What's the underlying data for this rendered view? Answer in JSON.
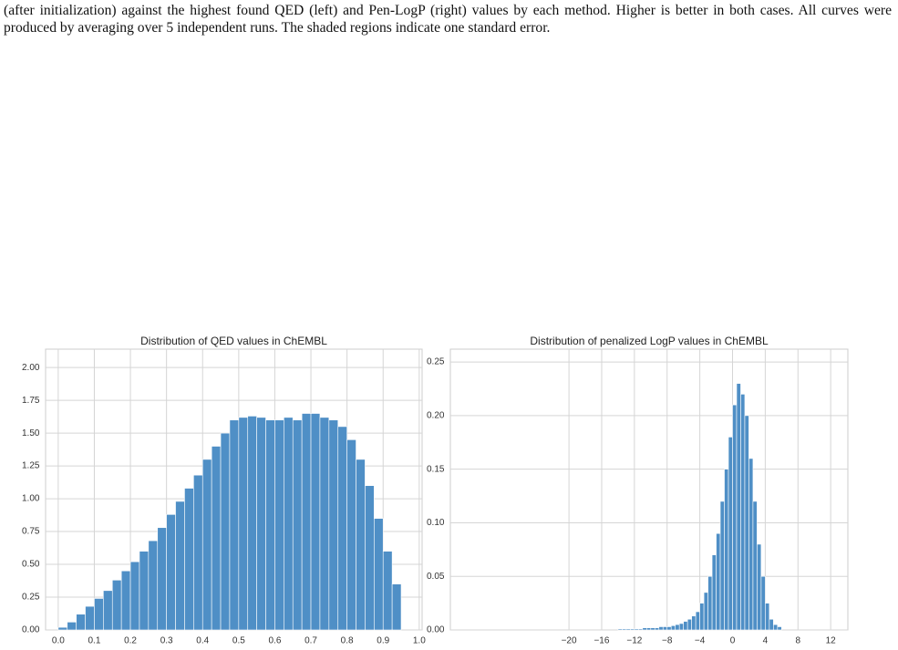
{
  "caption_text": "(after initialization) against the highest found QED (left) and Pen-LogP (right) values by each method. Higher is better in both cases. All curves were produced by averaging over 5 independent runs. The shaded regions indicate one standard error.",
  "chart_data": [
    {
      "type": "histogram",
      "title": "Distribution of QED values in ChEMBL",
      "color": "#4f8fc6",
      "grid": true,
      "bins": [
        0,
        0.025,
        0.05,
        0.075,
        0.1,
        0.125,
        0.15,
        0.175,
        0.2,
        0.225,
        0.25,
        0.275,
        0.3,
        0.325,
        0.35,
        0.375,
        0.4,
        0.425,
        0.45,
        0.475,
        0.5,
        0.525,
        0.55,
        0.575,
        0.6,
        0.625,
        0.65,
        0.675,
        0.7,
        0.725,
        0.75,
        0.775,
        0.8,
        0.825,
        0.85,
        0.875,
        0.9,
        0.925,
        0.95
      ],
      "values": [
        0.02,
        0.06,
        0.12,
        0.18,
        0.24,
        0.3,
        0.38,
        0.45,
        0.52,
        0.6,
        0.68,
        0.78,
        0.88,
        0.98,
        1.08,
        1.18,
        1.3,
        1.4,
        1.5,
        1.6,
        1.62,
        1.63,
        1.62,
        1.6,
        1.6,
        1.62,
        1.6,
        1.65,
        1.65,
        1.62,
        1.6,
        1.55,
        1.45,
        1.3,
        1.1,
        0.85,
        0.6,
        0.35
      ],
      "xlim": [
        -0.035,
        1.008
      ],
      "ylim": [
        0,
        2.14
      ],
      "xticks": [
        {
          "value": 0,
          "label": "0.0"
        },
        0.1,
        0.2,
        0.3,
        0.4,
        0.5,
        0.6,
        0.7,
        0.8,
        0.9,
        {
          "value": 1,
          "label": "1.0"
        }
      ],
      "yticks": [
        {
          "value": 0,
          "label": "0.00"
        },
        {
          "value": 0.25,
          "label": "0.25"
        },
        {
          "value": 0.5,
          "label": "0.50"
        },
        {
          "value": 0.75,
          "label": "0.75"
        },
        {
          "value": 1,
          "label": "1.00"
        },
        {
          "value": 1.25,
          "label": "1.25"
        },
        {
          "value": 1.5,
          "label": "1.50"
        },
        {
          "value": 1.75,
          "label": "1.75"
        },
        {
          "value": 2,
          "label": "2.00"
        }
      ]
    },
    {
      "type": "histogram",
      "title": "Distribution of penalized LogP values in ChEMBL",
      "color": "#4f8fc6",
      "grid": true,
      "bins": [
        -14,
        -13.5,
        -13,
        -12.5,
        -12,
        -11.5,
        -11,
        -10.5,
        -10,
        -9.5,
        -9,
        -8.5,
        -8,
        -7.5,
        -7,
        -6.5,
        -6,
        -5.5,
        -5,
        -4.5,
        -4,
        -3.5,
        -3,
        -2.5,
        -2,
        -1.5,
        -1,
        -0.5,
        0,
        0.5,
        1,
        1.5,
        2,
        2.5,
        3,
        3.5,
        4,
        4.5,
        5,
        5.5,
        6
      ],
      "values": [
        0.001,
        0.001,
        0.001,
        0.001,
        0.001,
        0.001,
        0.002,
        0.002,
        0.002,
        0.002,
        0.003,
        0.003,
        0.003,
        0.004,
        0.005,
        0.006,
        0.008,
        0.01,
        0.013,
        0.017,
        0.025,
        0.035,
        0.05,
        0.07,
        0.09,
        0.12,
        0.15,
        0.18,
        0.21,
        0.23,
        0.22,
        0.2,
        0.16,
        0.12,
        0.08,
        0.05,
        0.025,
        0.01,
        0.005,
        0.003
      ],
      "xlim": [
        -34.5,
        14.1
      ],
      "ylim": [
        0,
        0.262
      ],
      "xticks": [
        {
          "value": -20,
          "label": "−20"
        },
        {
          "value": -16,
          "label": "−16"
        },
        {
          "value": -12,
          "label": "−12"
        },
        {
          "value": -8,
          "label": "−8"
        },
        {
          "value": -4,
          "label": "−4"
        },
        0,
        4,
        8,
        12
      ],
      "yticks": [
        {
          "value": 0,
          "label": "0.00"
        },
        {
          "value": 0.05,
          "label": "0.05"
        },
        {
          "value": 0.1,
          "label": "0.10"
        },
        {
          "value": 0.15,
          "label": "0.15"
        },
        {
          "value": 0.2,
          "label": "0.20"
        },
        {
          "value": 0.25,
          "label": "0.25"
        }
      ]
    }
  ]
}
